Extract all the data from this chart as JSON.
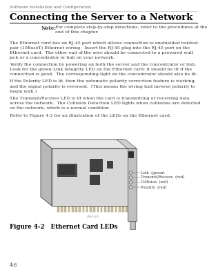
{
  "page_header": "Software Installation and Configuration",
  "title": "Connecting the Server to a Network",
  "note_label": "Note:",
  "note_text": "For complete step-by-step directions, refer to the procedures at the\nend of this chapter.",
  "paragraphs": [
    "The Ethernet card has an RJ-45 port which allows connection to unshielded twisted-\npair (10BaseT) Ethernet wiring.  Insert the RJ-45 plug into the RJ-45 port on the\nEthernet card.  The other end of the wire should be connected to a prewired wall\njack or a concentrator or hub on your network.",
    "Verify the connection by powering on both the server and the concentrator or hub.\nLook for the green Link Integrity LED on the Ethernet card; it should be lit if the\nconnection is good.  The corresponding light on the concentrator should also be lit.",
    "If the Polarity LED is lit, then the automatic polarity correction feature is working,\nand the signal polarity is reversed.  (This means the wiring had inverse polarity to\nbegin with.)",
    "The Transmit/Receive LED is lit when the card is transmitting or receiving data\nacross the network.  The Collision Detection LED lights when collisions are detected\non the network, which is a normal condition.",
    "Refer to Figure 4-2 for an illustration of the LEDs on the Ethernet card."
  ],
  "figure_caption": "Figure 4-2   Ethernet Card LEDs",
  "page_number": "4-6",
  "led_labels": [
    "Link  (green)",
    "Transmit/Receive  (red)",
    "Collision  (red)",
    "Polarity  (red)"
  ],
  "bg_color": "#ffffff",
  "text_color": "#3a3a3a",
  "title_color": "#000000",
  "header_color": "#666666",
  "card_face_color": "#d8d8d8",
  "card_top_color": "#e8e8e8",
  "card_side_color": "#b8b8b8",
  "chip_color": "#404040",
  "bracket_color": "#c0c0c0",
  "contact_color": "#c8c0a0"
}
